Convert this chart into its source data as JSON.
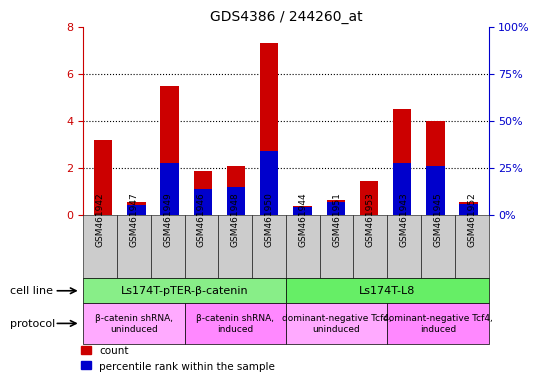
{
  "title": "GDS4386 / 244260_at",
  "samples": [
    "GSM461942",
    "GSM461947",
    "GSM461949",
    "GSM461946",
    "GSM461948",
    "GSM461950",
    "GSM461944",
    "GSM461951",
    "GSM461953",
    "GSM461943",
    "GSM461945",
    "GSM461952"
  ],
  "count_values": [
    3.2,
    0.55,
    5.5,
    1.85,
    2.1,
    7.3,
    0.38,
    0.62,
    1.45,
    4.5,
    4.0,
    0.55
  ],
  "percentile_values": [
    0.0,
    5.5,
    27.5,
    13.75,
    15.0,
    33.75,
    4.375,
    6.875,
    0.0,
    27.5,
    26.25,
    5.625
  ],
  "ylim_left": [
    0,
    8
  ],
  "ylim_right": [
    0,
    100
  ],
  "yticks_left": [
    0,
    2,
    4,
    6,
    8
  ],
  "yticks_right": [
    0,
    25,
    50,
    75,
    100
  ],
  "count_color": "#cc0000",
  "percentile_color": "#0000cc",
  "cell_line_groups": [
    {
      "label": "Ls174T-pTER-β-catenin",
      "start": 0,
      "end": 5,
      "color": "#88ee88"
    },
    {
      "label": "Ls174T-L8",
      "start": 6,
      "end": 11,
      "color": "#66ee66"
    }
  ],
  "protocol_groups": [
    {
      "label": "β-catenin shRNA,\nuninduced",
      "start": 0,
      "end": 2,
      "color": "#ffaaff"
    },
    {
      "label": "β-catenin shRNA,\ninduced",
      "start": 3,
      "end": 5,
      "color": "#ff88ff"
    },
    {
      "label": "dominant-negative Tcf4,\nuninduced",
      "start": 6,
      "end": 8,
      "color": "#ffaaff"
    },
    {
      "label": "dominant-negative Tcf4,\ninduced",
      "start": 9,
      "end": 11,
      "color": "#ff88ff"
    }
  ],
  "legend_count_label": "count",
  "legend_percentile_label": "percentile rank within the sample",
  "cell_line_label": "cell line",
  "protocol_label": "protocol",
  "sample_box_color": "#cccccc",
  "plot_bg_color": "#ffffff"
}
